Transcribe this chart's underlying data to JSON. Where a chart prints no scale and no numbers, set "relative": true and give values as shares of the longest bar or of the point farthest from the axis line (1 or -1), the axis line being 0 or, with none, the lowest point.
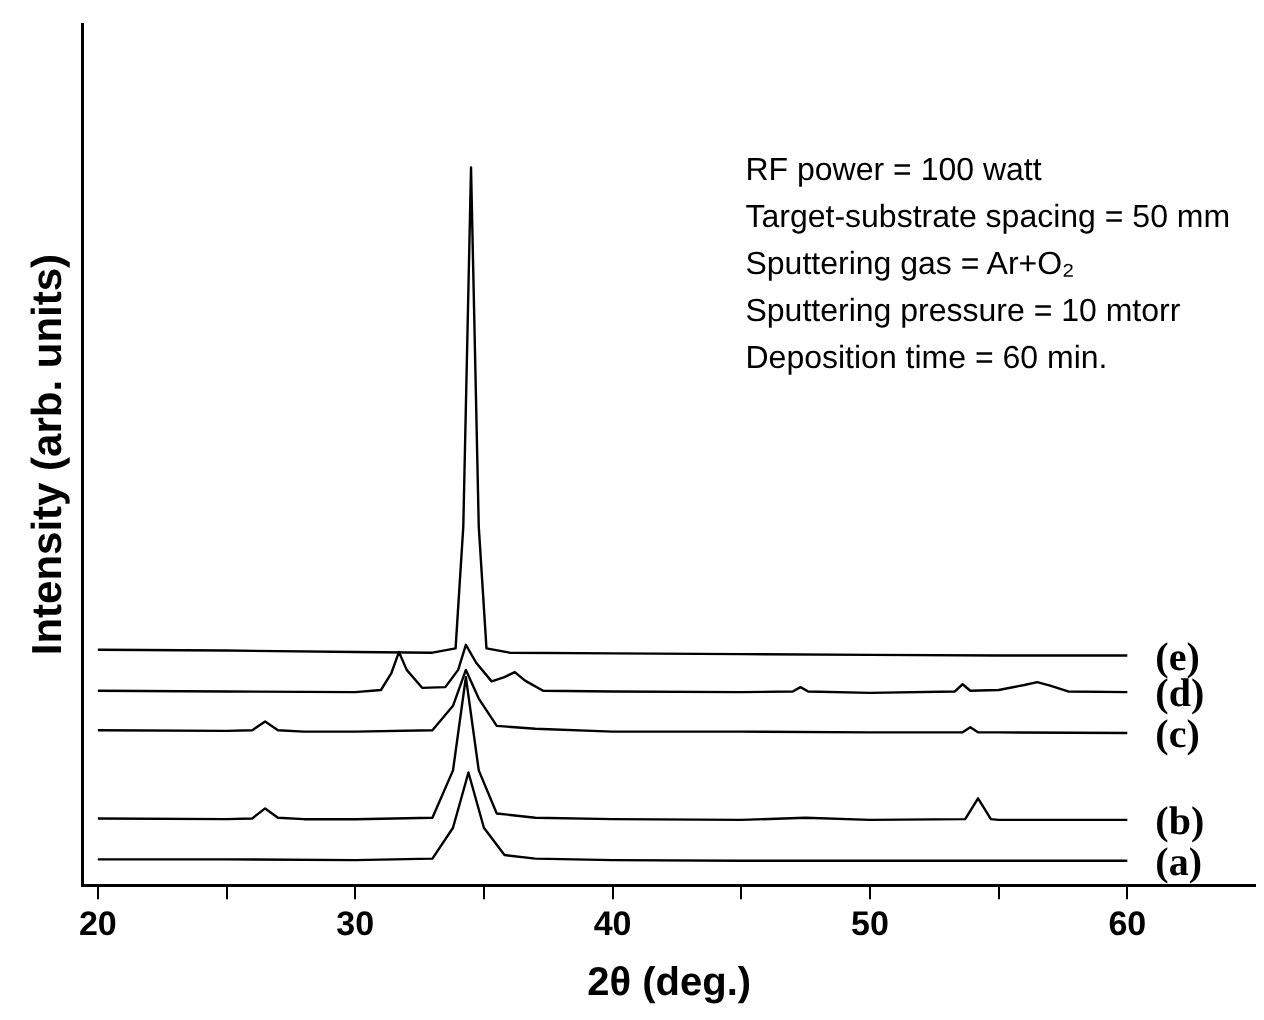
{
  "chart_data": {
    "type": "line",
    "relative": true,
    "xlabel": "2θ (deg.)",
    "ylabel": "Intensity (arb. units)",
    "xlim": [
      19.4,
      65
    ],
    "xticks": [
      20,
      {
        "value": 25,
        "label": null
      },
      30,
      {
        "value": 35,
        "label": null
      },
      40,
      {
        "value": 45,
        "label": null
      },
      50,
      {
        "value": 55,
        "label": null
      },
      60
    ],
    "grid": false,
    "legend": false,
    "marker": "none",
    "line_style": "solid",
    "annotations": [
      "RF power = 100 watt",
      "Target-substrate spacing = 50 mm",
      "Sputtering gas = Ar+O₂",
      "Sputtering pressure = 10 mtorr",
      "Deposition time = 60 min."
    ],
    "series": [
      {
        "name": "(e)",
        "color": "#000000",
        "x": [
          20,
          25,
          30,
          33,
          33.9,
          34.2,
          34.5,
          34.8,
          35.1,
          36,
          40,
          45,
          50,
          55,
          60
        ],
        "values": [
          0.328,
          0.327,
          0.325,
          0.324,
          0.33,
          0.5,
          1.0,
          0.5,
          0.33,
          0.324,
          0.323,
          0.322,
          0.321,
          0.32,
          0.32
        ]
      },
      {
        "name": "(d)",
        "color": "#000000",
        "x": [
          20,
          25,
          30,
          31,
          31.4,
          31.7,
          32,
          32.6,
          33.5,
          34,
          34.3,
          34.7,
          35.3,
          35.8,
          36.2,
          36.6,
          37.3,
          40,
          45,
          47,
          47.3,
          47.6,
          50,
          53.3,
          53.6,
          53.9,
          55,
          56,
          56.5,
          57,
          57.7,
          60
        ],
        "values": [
          0.271,
          0.27,
          0.269,
          0.272,
          0.295,
          0.325,
          0.3,
          0.275,
          0.276,
          0.3,
          0.335,
          0.31,
          0.284,
          0.29,
          0.297,
          0.285,
          0.271,
          0.27,
          0.269,
          0.27,
          0.276,
          0.27,
          0.268,
          0.27,
          0.28,
          0.271,
          0.272,
          0.279,
          0.283,
          0.278,
          0.27,
          0.269
        ]
      },
      {
        "name": "(c)",
        "color": "#000000",
        "x": [
          20,
          25,
          26,
          26.5,
          27,
          28,
          30,
          33,
          33.8,
          34.3,
          34.8,
          35.5,
          37,
          40,
          45,
          50,
          53.6,
          53.9,
          54.2,
          55,
          60
        ],
        "values": [
          0.216,
          0.215,
          0.216,
          0.228,
          0.216,
          0.214,
          0.214,
          0.216,
          0.25,
          0.3,
          0.26,
          0.222,
          0.218,
          0.214,
          0.214,
          0.213,
          0.213,
          0.22,
          0.213,
          0.213,
          0.212
        ]
      },
      {
        "name": "(b)",
        "color": "#000000",
        "x": [
          20,
          25,
          26,
          26.5,
          27,
          28,
          30,
          33,
          33.8,
          34.3,
          34.8,
          35.5,
          37,
          40,
          45,
          47.5,
          50,
          53.7,
          54.2,
          54.7,
          55,
          60
        ],
        "values": [
          0.093,
          0.092,
          0.093,
          0.107,
          0.094,
          0.092,
          0.092,
          0.094,
          0.16,
          0.29,
          0.16,
          0.1,
          0.094,
          0.092,
          0.091,
          0.094,
          0.091,
          0.092,
          0.121,
          0.092,
          0.091,
          0.091
        ]
      },
      {
        "name": "(a)",
        "color": "#000000",
        "x": [
          20,
          25,
          30,
          33,
          33.8,
          34.4,
          35,
          35.8,
          37,
          40,
          45,
          50,
          55,
          60
        ],
        "values": [
          0.036,
          0.036,
          0.035,
          0.037,
          0.08,
          0.157,
          0.08,
          0.042,
          0.037,
          0.035,
          0.034,
          0.034,
          0.034,
          0.034
        ]
      }
    ]
  }
}
